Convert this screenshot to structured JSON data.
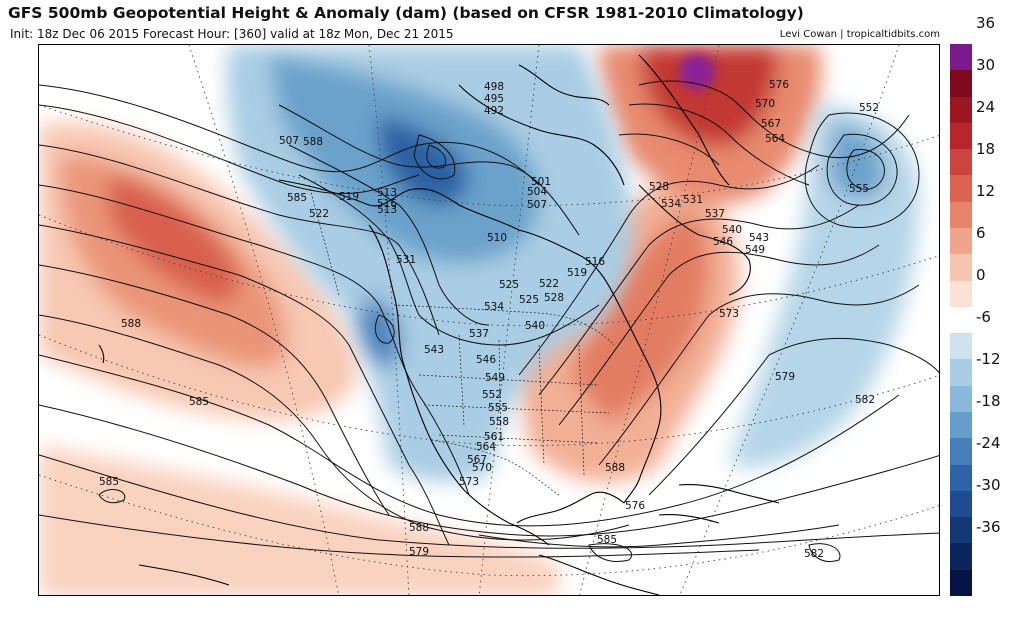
{
  "title": "GFS 500mb Geopotential Height & Anomaly (dam) (based on CFSR 1981-2010 Climatology)",
  "subtitle": "Init: 18z Dec 06 2015   Forecast Hour: [360]   valid at 18z Mon, Dec 21 2015",
  "credit": "Levi Cowan | tropicaltidbits.com",
  "colorbar": {
    "colors": [
      "#7a1a8c",
      "#7d0b1c",
      "#9d1521",
      "#b8262c",
      "#cc4440",
      "#db6350",
      "#e7856c",
      "#efa58c",
      "#f6c6ae",
      "#fbe2d3",
      "#ffffff",
      "#cfe3ef",
      "#a8cde4",
      "#88b9da",
      "#649fcb",
      "#447fba",
      "#2d64a6",
      "#1e4c8f",
      "#123876",
      "#0c255e",
      "#061347"
    ],
    "tick_labels": [
      "36",
      "30",
      "24",
      "18",
      "12",
      "6",
      "0",
      "-6",
      "-12",
      "-18",
      "-24",
      "-30",
      "-36"
    ]
  },
  "contour_labels": [
    "498",
    "495",
    "492",
    "504",
    "507",
    "510",
    "513",
    "516",
    "519",
    "522",
    "525",
    "528",
    "531",
    "534",
    "537",
    "540",
    "543",
    "546",
    "549",
    "552",
    "555",
    "558",
    "561",
    "564",
    "567",
    "570",
    "573",
    "576",
    "579",
    "582",
    "585",
    "588",
    "501",
    "507",
    "513",
    "516",
    "519",
    "522",
    "525",
    "528",
    "531",
    "534",
    "537",
    "540",
    "543",
    "546",
    "549",
    "552",
    "555",
    "564",
    "567",
    "570",
    "573",
    "576",
    "579",
    "585",
    "588",
    "588",
    "585",
    "582",
    "588",
    "585",
    "507",
    "510"
  ]
}
